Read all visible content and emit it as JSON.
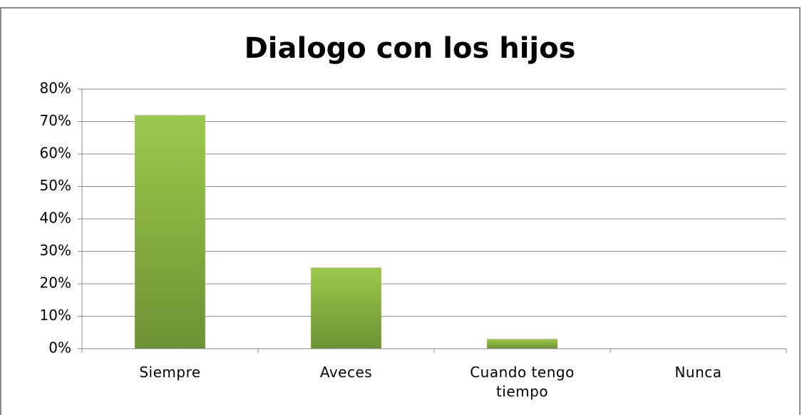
{
  "chart_data": {
    "type": "bar",
    "title": "Dialogo con los hijos",
    "categories": [
      "Siempre",
      "Aveces",
      "Cuando tengo tiempo",
      "Nunca"
    ],
    "values": [
      72,
      25,
      3,
      0
    ],
    "color": "#8db543",
    "ylim": [
      0,
      80
    ],
    "yticks": [
      {
        "value": 0,
        "label": "0%"
      },
      {
        "value": 10,
        "label": "10%"
      },
      {
        "value": 20,
        "label": "20%"
      },
      {
        "value": 30,
        "label": "30%"
      },
      {
        "value": 40,
        "label": "40%"
      },
      {
        "value": 50,
        "label": "50%"
      },
      {
        "value": 60,
        "label": "60%"
      },
      {
        "value": 70,
        "label": "70%"
      },
      {
        "value": 80,
        "label": "80%"
      }
    ],
    "grid": true
  }
}
